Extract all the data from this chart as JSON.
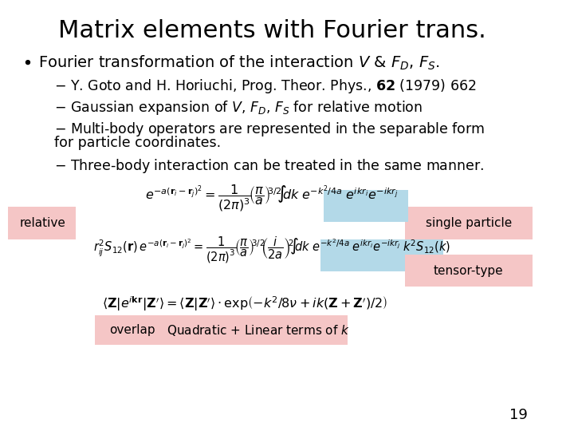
{
  "title": "Matrix elements with Fourier trans.",
  "background": "#ffffff",
  "title_fontsize": 22,
  "text_fontsize": 14,
  "eq_fontsize": 13,
  "label_fontsize": 12,
  "slide_number": "19",
  "bullet": "Fourier transformation of the interaction $V$ & $F_D$, $F_S$.",
  "items": [
    "Y. Goto and H. Horiuchi, Prog. Theor. Phys., $\\mathbf{62}$ (1979) 662",
    "Gaussian expansion of $V$, $F_D$, $F_S$ for relative motion",
    "Multi-body operators are represented in the separable form\nfor particle coordinates.",
    "Three-body interaction can be treated in the same manner."
  ],
  "eq1": "$e^{-a(\\mathbf{r}_i-\\mathbf{r}_j)^2} = \\dfrac{1}{(2\\pi)^3}\\left(\\dfrac{\\pi}{a}\\right)^{3/2}\\!\\int\\!dk\\; e^{-k^2/4a}\\; e^{i k\\mathbf{r}_i}e^{-ik\\mathbf{r}_j}$",
  "eq2": "$r_{ij}^2 S_{12}(\\mathbf{r})\\, e^{-a(\\mathbf{r}_i-\\mathbf{r}_j)^2} = \\dfrac{1}{(2\\pi)^3}\\left(\\dfrac{\\pi}{a}\\right)^{3/2}\\!\\left(\\dfrac{i}{2a}\\right)^{2}\\!\\int\\!dk\\; e^{-k^2/4a}\\; e^{i k\\mathbf{r}_i}e^{-ik\\mathbf{r}_j}\\; k^2 S_{12}(k)$",
  "eq3": "$\\langle \\mathbf{Z}|e^{i\\mathbf{k}\\mathbf{r}}|\\mathbf{Z}^{\\prime}\\rangle = \\langle \\mathbf{Z}|\\mathbf{Z}^{\\prime}\\rangle \\cdot \\exp\\!\\left(-k^2/8\\nu + ik(\\mathbf{Z}+\\mathbf{Z}^{\\prime})/2\\right)$",
  "label_relative": "relative",
  "label_single": "single particle",
  "label_tensor": "tensor-type",
  "label_overlap": "overlap",
  "label_quadratic": "Quadratic + Linear terms of $k$",
  "color_blue": "#b3d9e8",
  "color_pink": "#f5c6c6"
}
